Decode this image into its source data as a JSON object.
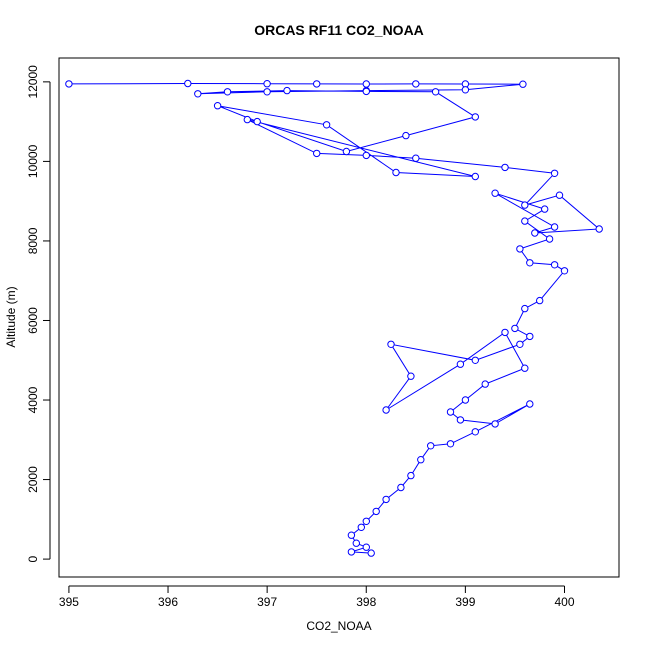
{
  "chart_data": {
    "type": "line",
    "title": "ORCAS RF11 CO2_NOAA",
    "xlabel": "CO2_NOAA",
    "ylabel": "Altitude (m)",
    "xlim": [
      394.9,
      400.55
    ],
    "ylim": [
      -450,
      12600
    ],
    "xticks": [
      395,
      396,
      397,
      398,
      399,
      400
    ],
    "yticks": [
      0,
      2000,
      4000,
      6000,
      8000,
      10000,
      12000
    ],
    "grid": false,
    "legend": "none",
    "marker": "open-circle",
    "color": "#0000ff",
    "series": [
      {
        "x": [
          395.0,
          396.2,
          397.0,
          397.5,
          398.0,
          398.5,
          399.0,
          399.58,
          399.0,
          398.0,
          397.0,
          396.3,
          396.6,
          397.2,
          398.0,
          398.7,
          399.1,
          398.4,
          397.8,
          396.9,
          396.5,
          397.6,
          398.3,
          399.1,
          396.8,
          397.5,
          398.0,
          398.5,
          399.4,
          399.9,
          399.6,
          399.95,
          400.35,
          399.7,
          399.9,
          399.3,
          399.8,
          399.6,
          399.85,
          399.55,
          399.65,
          399.9,
          400.0,
          399.75,
          399.6,
          399.5,
          399.65,
          399.55,
          399.1,
          398.25,
          398.45,
          398.2,
          398.95,
          399.4,
          399.6,
          399.2,
          399.0,
          398.85,
          398.95,
          399.3,
          399.65,
          399.1,
          398.85,
          398.65,
          398.55,
          398.45,
          398.35,
          398.2,
          398.1,
          398.0,
          397.95,
          397.85,
          397.9,
          398.0,
          397.85,
          398.05
        ],
        "y": [
          11950,
          11960,
          11955,
          11950,
          11945,
          11950,
          11945,
          11940,
          11800,
          11780,
          11750,
          11700,
          11750,
          11780,
          11760,
          11750,
          11120,
          10650,
          10250,
          11000,
          11400,
          10920,
          9720,
          9620,
          11050,
          10200,
          10150,
          10080,
          9850,
          9700,
          8900,
          9150,
          8300,
          8200,
          8350,
          9200,
          8800,
          8500,
          8050,
          7800,
          7450,
          7400,
          7250,
          6500,
          6300,
          5800,
          5600,
          5400,
          5000,
          5400,
          4600,
          3750,
          4900,
          5700,
          4800,
          4400,
          4000,
          3700,
          3500,
          3400,
          3900,
          3200,
          2900,
          2850,
          2500,
          2100,
          1800,
          1500,
          1200,
          950,
          800,
          600,
          400,
          300,
          180,
          150
        ]
      }
    ]
  }
}
